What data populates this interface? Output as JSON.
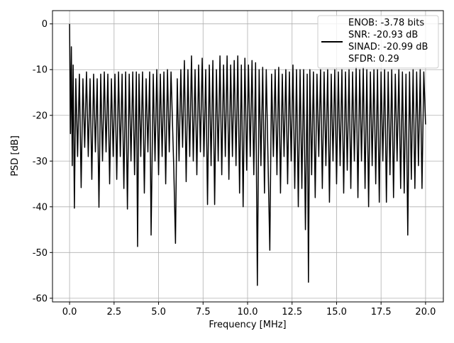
{
  "chart_data": {
    "type": "line",
    "xlabel": "Frequency [MHz]",
    "ylabel": "PSD [dB]",
    "xlim": [
      -0.96,
      21
    ],
    "ylim": [
      -60.8,
      2.9
    ],
    "xticks": [
      {
        "value": 0,
        "label": "0.0"
      },
      2.5,
      {
        "value": 5,
        "label": "5.0"
      },
      7.5,
      {
        "value": 10,
        "label": "10.0"
      },
      12.5,
      {
        "value": 15,
        "label": "15.0"
      },
      17.5,
      {
        "value": 20,
        "label": "20.0"
      }
    ],
    "yticks": [
      -60,
      -50,
      -40,
      -30,
      -20,
      -10,
      0
    ],
    "grid": true,
    "legend": "upper right",
    "series": [
      {
        "name": "ENOB: -3.78 bits\nSNR: -20.93 dB\nSINAD: -20.99 dB\nSFDR: 0.29",
        "color": "#000000",
        "x": [
          0,
          0.05,
          0.1,
          0.15,
          0.2,
          0.27,
          0.35,
          0.45,
          0.55,
          0.65,
          0.75,
          0.85,
          0.95,
          1.05,
          1.15,
          1.25,
          1.35,
          1.45,
          1.55,
          1.65,
          1.75,
          1.85,
          1.95,
          2.05,
          2.15,
          2.25,
          2.35,
          2.45,
          2.55,
          2.65,
          2.75,
          2.85,
          2.95,
          3.05,
          3.15,
          3.25,
          3.35,
          3.45,
          3.55,
          3.65,
          3.75,
          3.82,
          3.9,
          4.0,
          4.1,
          4.2,
          4.3,
          4.4,
          4.5,
          4.58,
          4.7,
          4.8,
          4.9,
          5.0,
          5.1,
          5.2,
          5.3,
          5.4,
          5.5,
          5.6,
          5.7,
          5.85,
          5.95,
          6.05,
          6.15,
          6.25,
          6.35,
          6.45,
          6.55,
          6.65,
          6.75,
          6.85,
          6.95,
          7.05,
          7.15,
          7.25,
          7.35,
          7.45,
          7.55,
          7.65,
          7.75,
          7.85,
          7.95,
          8.05,
          8.15,
          8.25,
          8.35,
          8.45,
          8.55,
          8.65,
          8.75,
          8.85,
          8.95,
          9.05,
          9.15,
          9.25,
          9.35,
          9.45,
          9.55,
          9.65,
          9.75,
          9.85,
          9.95,
          10.05,
          10.15,
          10.25,
          10.35,
          10.45,
          10.55,
          10.65,
          10.75,
          10.85,
          10.95,
          11.05,
          11.15,
          11.25,
          11.35,
          11.45,
          11.55,
          11.65,
          11.75,
          11.85,
          11.95,
          12.05,
          12.15,
          12.25,
          12.35,
          12.45,
          12.55,
          12.65,
          12.75,
          12.85,
          12.95,
          13.05,
          13.15,
          13.25,
          13.35,
          13.42,
          13.5,
          13.6,
          13.7,
          13.8,
          13.9,
          14.0,
          14.1,
          14.2,
          14.3,
          14.4,
          14.5,
          14.6,
          14.7,
          14.8,
          14.9,
          15.0,
          15.1,
          15.2,
          15.3,
          15.4,
          15.5,
          15.6,
          15.7,
          15.8,
          15.9,
          16.0,
          16.1,
          16.2,
          16.3,
          16.4,
          16.5,
          16.6,
          16.7,
          16.8,
          16.9,
          17.0,
          17.1,
          17.2,
          17.3,
          17.4,
          17.5,
          17.6,
          17.7,
          17.8,
          17.9,
          18.0,
          18.1,
          18.2,
          18.3,
          18.4,
          18.5,
          18.6,
          18.7,
          18.8,
          18.9,
          19.0,
          19.1,
          19.2,
          19.3,
          19.4,
          19.5,
          19.6,
          19.7,
          19.8,
          19.9,
          20.0
        ],
        "values": [
          0,
          -24,
          -5,
          -31,
          -9,
          -40.3,
          -12,
          -29,
          -11,
          -35.8,
          -12,
          -27,
          -10.5,
          -29,
          -12,
          -34,
          -11,
          -28,
          -12,
          -40.1,
          -11,
          -30,
          -10.5,
          -28,
          -11,
          -35,
          -12,
          -29,
          -11,
          -34,
          -10.5,
          -29,
          -11,
          -36,
          -10.5,
          -40.5,
          -11,
          -30,
          -10.5,
          -33,
          -10.5,
          -48.7,
          -11,
          -29,
          -10.5,
          -37,
          -12,
          -28,
          -10.5,
          -46.2,
          -11,
          -30,
          -10,
          -33,
          -11,
          -29,
          -10.5,
          -35,
          -10,
          -28,
          -10.5,
          -31,
          -48,
          -12,
          -30,
          -10,
          -27,
          -8,
          -34.5,
          -10,
          -29,
          -7,
          -30,
          -10,
          -33,
          -9,
          -28,
          -7.5,
          -29,
          -10,
          -39.5,
          -9,
          -31,
          -8,
          -39.5,
          -10,
          -30,
          -7,
          -33,
          -9,
          -29,
          -7,
          -34,
          -9,
          -29,
          -8,
          -31,
          -7,
          -37,
          -9,
          -40,
          -7.5,
          -32,
          -9,
          -29,
          -8,
          -33,
          -8.5,
          -57.2,
          -10,
          -31,
          -9.5,
          -37,
          -10,
          -30,
          -49.5,
          -11,
          -29,
          -10,
          -33,
          -9.5,
          -37,
          -11,
          -29,
          -10,
          -35,
          -10.5,
          -30,
          -9,
          -36,
          -10,
          -40,
          -10,
          -36,
          -10,
          -45,
          -11,
          -56.5,
          -10,
          -33,
          -10.5,
          -38,
          -11,
          -29,
          -10,
          -36,
          -10.5,
          -31,
          -10,
          -39,
          -11,
          -30,
          -10,
          -35,
          -10.5,
          -31,
          -10,
          -37,
          -10.5,
          -32,
          -10,
          -36,
          -10.5,
          -30,
          -9.5,
          -38,
          -10,
          -30,
          -9.5,
          -36,
          -10,
          -40,
          -10.5,
          -31,
          -10,
          -35,
          -10,
          -39,
          -10.5,
          -30,
          -10,
          -39,
          -10.5,
          -33,
          -10,
          -38,
          -11,
          -30,
          -10,
          -36,
          -10.5,
          -37,
          -11,
          -46.2,
          -10.5,
          -34,
          -10,
          -36,
          -10.5,
          -31,
          -10,
          -36,
          -10.5,
          -22
        ]
      }
    ]
  }
}
